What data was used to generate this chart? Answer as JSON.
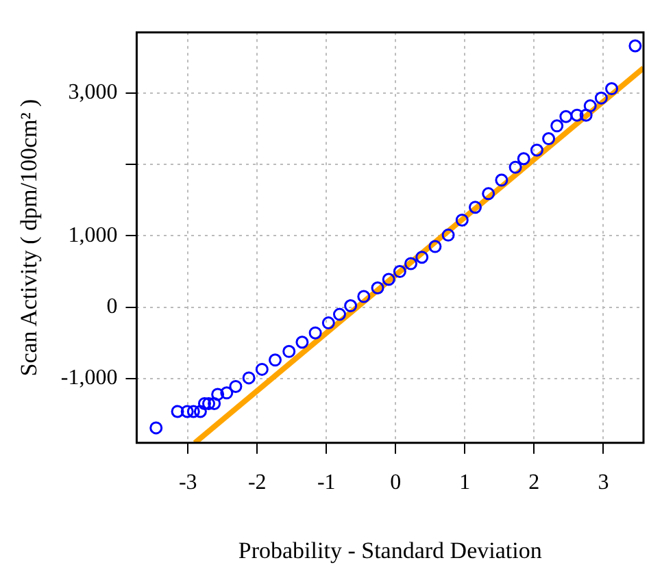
{
  "chart_data": {
    "type": "scatter",
    "xlabel": "Probability - Standard Deviation",
    "ylabel": "Scan Activity ( dpm/100cm² )",
    "xlim": [
      -3.74,
      3.58
    ],
    "ylim": [
      -1900,
      3850
    ],
    "xticks": [
      -3,
      -2,
      -1,
      0,
      1,
      2,
      3
    ],
    "yticks": [
      {
        "value": -1000,
        "label": "-1,000"
      },
      0,
      {
        "value": 1000,
        "label": "1,000"
      },
      {
        "value": 2000,
        "label": null
      },
      {
        "value": 3000,
        "label": "3,000"
      }
    ],
    "grid": true,
    "legend": false,
    "series": [
      {
        "type": "scatter",
        "color": "#0000ff",
        "marker": "circle",
        "x": [
          -3.46,
          -3.15,
          -3.01,
          -2.92,
          -2.82,
          -2.76,
          -2.7,
          -2.62,
          -2.57,
          -2.44,
          -2.31,
          -2.12,
          -1.93,
          -1.74,
          -1.54,
          -1.35,
          -1.16,
          -0.97,
          -0.81,
          -0.65,
          -0.46,
          -0.26,
          -0.1,
          0.06,
          0.22,
          0.38,
          0.57,
          0.76,
          0.96,
          1.15,
          1.34,
          1.53,
          1.73,
          1.85,
          2.04,
          2.21,
          2.33,
          2.46,
          2.62,
          2.75,
          2.81,
          2.97,
          3.12,
          3.46
        ],
        "values": [
          -1690,
          -1460,
          -1460,
          -1460,
          -1460,
          -1350,
          -1350,
          -1350,
          -1220,
          -1200,
          -1110,
          -990,
          -870,
          -740,
          -620,
          -490,
          -360,
          -220,
          -100,
          20,
          150,
          270,
          390,
          500,
          610,
          700,
          850,
          1010,
          1220,
          1400,
          1590,
          1780,
          1960,
          2080,
          2200,
          2360,
          2540,
          2670,
          2690,
          2690,
          2820,
          2930,
          3060,
          3660
        ]
      },
      {
        "type": "line",
        "color": "#ffa500",
        "marker": "none",
        "line_style": "solid",
        "x": [
          -2.9,
          3.58
        ],
        "values": [
          -1900,
          3350
        ]
      }
    ]
  }
}
